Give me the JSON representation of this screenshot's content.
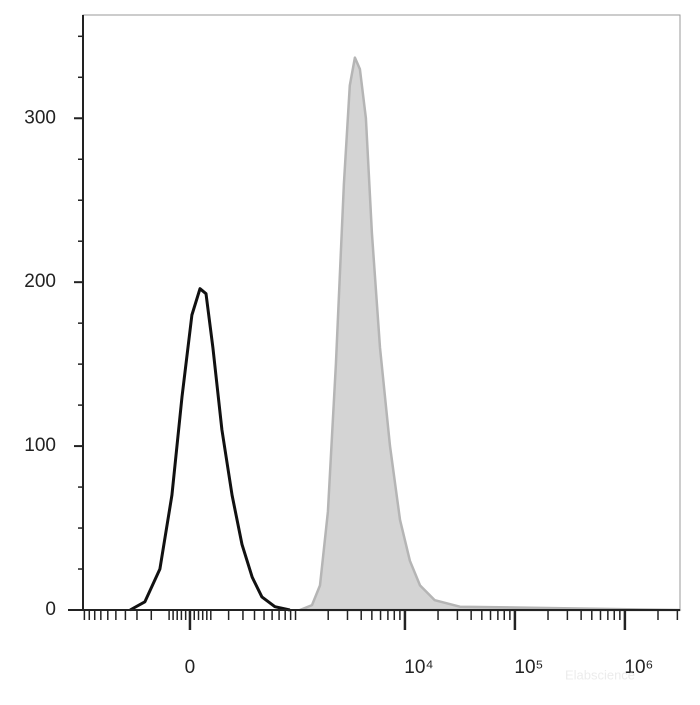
{
  "chart_data": {
    "type": "histogram-overlay",
    "x_scale": "biexponential",
    "xlim": [
      -1030,
      3170000
    ],
    "xticks": [
      {
        "value": 0,
        "label": "0"
      },
      {
        "value": 10000,
        "label": "10⁴"
      },
      {
        "value": 100000,
        "label": "10⁵"
      },
      {
        "value": 1000000,
        "label": "10⁶"
      }
    ],
    "xminorticks": [
      -1000,
      -900,
      -800,
      -700,
      -600,
      -500,
      -400,
      -300,
      -200,
      -100,
      -80,
      -60,
      -40,
      -20,
      20,
      40,
      60,
      80,
      100,
      200,
      300,
      400,
      500,
      600,
      700,
      800,
      900,
      1000,
      2000,
      3000,
      4000,
      5000,
      6000,
      7000,
      8000,
      9000,
      20000,
      30000,
      40000,
      50000,
      60000,
      70000,
      80000,
      90000,
      200000,
      300000,
      400000,
      500000,
      600000,
      700000,
      800000,
      900000,
      2000000,
      3000000
    ],
    "ylim": [
      0,
      363
    ],
    "yticks": [
      0,
      100,
      200,
      300
    ],
    "yminorticks": [
      25,
      50,
      75,
      125,
      150,
      175,
      225,
      250,
      275,
      325,
      350
    ],
    "series": [
      {
        "style": "filled",
        "color": "#d4d4d4",
        "edge_color": "#b5b5b5",
        "x": [
          1099,
          1419,
          1681,
          1989,
          2353,
          2780,
          3150,
          3505,
          3890,
          4410,
          5010,
          5930,
          7310,
          9010,
          11100,
          13700,
          18700,
          31600,
          3170000
        ],
        "values": [
          0,
          3,
          15,
          60,
          150,
          260,
          320,
          337,
          330,
          300,
          230,
          160,
          100,
          55,
          30,
          15,
          6,
          2,
          0
        ]
      },
      {
        "style": "line",
        "color": "#111111",
        "x": [
          -357,
          -242,
          -149,
          -86,
          -37,
          9,
          47,
          76,
          111,
          160,
          222,
          293,
          378,
          476,
          639,
          886
        ],
        "values": [
          0,
          5,
          25,
          70,
          130,
          180,
          196,
          193,
          160,
          110,
          70,
          40,
          20,
          8,
          2,
          0
        ]
      }
    ],
    "watermark": "Elabscience"
  }
}
